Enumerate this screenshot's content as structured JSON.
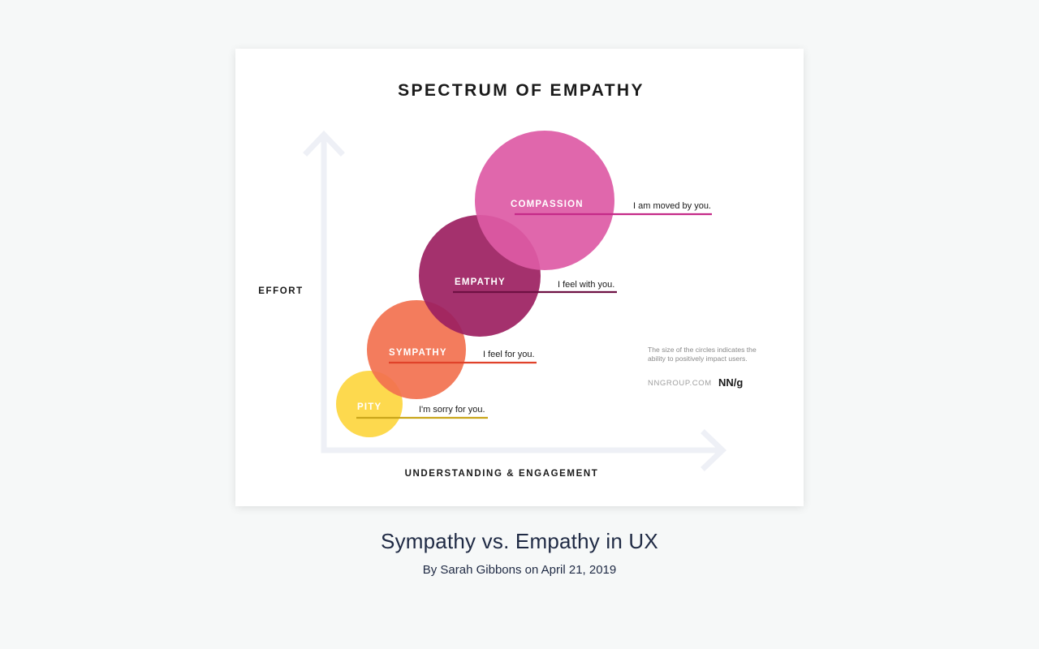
{
  "diagram": {
    "title": "SPECTRUM OF EMPATHY",
    "y_axis_label": "EFFORT",
    "x_axis_label": "UNDERSTANDING & ENGAGEMENT",
    "levels": [
      {
        "label": "PITY",
        "phrase": "I'm sorry for you.",
        "color": "#fdd63f",
        "line_color": "#c9a51a"
      },
      {
        "label": "SYMPATHY",
        "phrase": "I feel for you.",
        "color": "#f2714f",
        "line_color": "#e0422a"
      },
      {
        "label": "EMPATHY",
        "phrase": "I feel with you.",
        "color": "#9c1f61",
        "line_color": "#6e1143"
      },
      {
        "label": "COMPASSION",
        "phrase": "I am moved by you.",
        "color": "#dd5aa5",
        "line_color": "#c52a88"
      }
    ],
    "note_lines": [
      "The size of the circles indicates the",
      "ability to positively impact users."
    ],
    "site": "NNGROUP.COM",
    "logo": "NN/g",
    "axis_color": "#eef0f6"
  },
  "caption": {
    "title": "Sympathy vs. Empathy in UX",
    "byline": "By Sarah Gibbons on April 21, 2019"
  }
}
